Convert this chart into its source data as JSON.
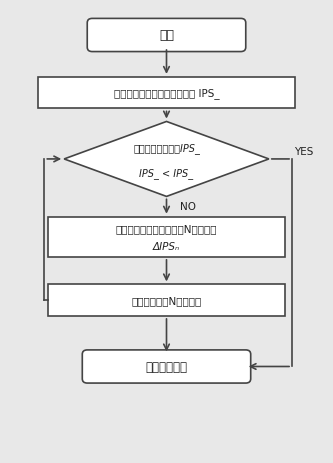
{
  "bg_color": "#e8e8e8",
  "box_color": "#ffffff",
  "box_edge_color": "#444444",
  "arrow_color": "#444444",
  "text_color": "#222222",
  "title": "开始",
  "step1": "测试当前像面各视场点偏振态 IPS_",
  "diamond_line1": "与期望偏振态比较IPS_",
  "diamond_line2": "IPS_ < IPS_",
  "step3_line1": "确定需要调整的偏振单元N与偏振量",
  "step3_line2": "ΔIPSₙ",
  "step4": "调整偏振单元N的偏振态",
  "step5": "开始正式曝光",
  "label_no": "NO",
  "label_yes": "YES"
}
